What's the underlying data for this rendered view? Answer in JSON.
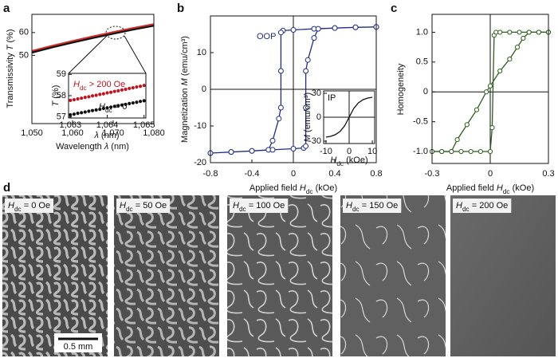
{
  "panel_labels": [
    "a",
    "b",
    "c",
    "d"
  ],
  "chart_data": [
    {
      "type": "line",
      "xlabel": [
        {
          "text": "Wavelength "
        },
        {
          "text": "λ",
          "italic": true
        },
        {
          "text": " (nm)"
        }
      ],
      "ylabel": [
        {
          "text": "Transmissivity "
        },
        {
          "text": "T",
          "italic": true
        },
        {
          "text": " (%)"
        }
      ],
      "xlim": [
        1050,
        1080
      ],
      "ylim": [
        20,
        68
      ],
      "xticks": [
        {
          "value": 1050,
          "label": "1,050"
        },
        {
          "value": 1060,
          "label": "1,060"
        },
        {
          "value": 1070,
          "label": "1,070"
        },
        {
          "value": 1080,
          "label": "1,080"
        }
      ],
      "yticks": [
        50,
        60
      ],
      "series": [
        {
          "color": "#d42a2a",
          "x": [
            1050,
            1055,
            1060,
            1065,
            1070,
            1075,
            1080
          ],
          "values": [
            51.9,
            54.2,
            56.3,
            58.3,
            60.2,
            62.0,
            63.7
          ]
        },
        {
          "color": "#111111",
          "x": [
            1050,
            1055,
            1060,
            1065,
            1070,
            1075,
            1080
          ],
          "values": [
            51.2,
            53.5,
            55.6,
            57.6,
            59.5,
            61.3,
            63.0
          ]
        }
      ]
    },
    {
      "type": "scatter",
      "xlabel": [
        {
          "text": "λ",
          "italic": true
        },
        {
          "text": " (nm)"
        }
      ],
      "ylabel": [
        {
          "text": "T",
          "italic": true
        },
        {
          "text": " (%)"
        }
      ],
      "xlim": [
        1062.95,
        1065.05
      ],
      "ylim": [
        56.95,
        59.05
      ],
      "xticks": [
        {
          "value": 1063,
          "label": "1,063"
        },
        {
          "value": 1064,
          "label": "1,064"
        },
        {
          "value": 1065,
          "label": "1,065"
        }
      ],
      "yticks": [
        57,
        58,
        59
      ],
      "annotations": [
        [
          {
            "text": "H",
            "italic": true
          },
          {
            "text": "dc",
            "sub": true
          },
          {
            "text": " > 200 Oe"
          }
        ],
        [
          {
            "text": "H",
            "italic": true
          },
          {
            "text": "dc",
            "sub": true
          },
          {
            "text": " = 0"
          }
        ]
      ],
      "series": [
        {
          "color": "#c0141e",
          "x": [
            1063,
            1063.1,
            1063.2,
            1063.3,
            1063.4,
            1063.5,
            1063.6,
            1063.7,
            1063.8,
            1063.9,
            1064,
            1064.1,
            1064.2,
            1064.3,
            1064.4,
            1064.5,
            1064.6,
            1064.7,
            1064.8,
            1064.9,
            1065
          ],
          "values": [
            57.78,
            57.81,
            57.85,
            57.88,
            57.92,
            57.95,
            57.99,
            58.02,
            58.06,
            58.09,
            58.13,
            58.16,
            58.2,
            58.23,
            58.27,
            58.3,
            58.34,
            58.37,
            58.41,
            58.44,
            58.48
          ]
        },
        {
          "color": "#111111",
          "x": [
            1063,
            1063.1,
            1063.2,
            1063.3,
            1063.4,
            1063.5,
            1063.6,
            1063.7,
            1063.8,
            1063.9,
            1064,
            1064.1,
            1064.2,
            1064.3,
            1064.4,
            1064.5,
            1064.6,
            1064.7,
            1064.8,
            1064.9,
            1065
          ],
          "values": [
            57.1,
            57.13,
            57.17,
            57.2,
            57.23,
            57.27,
            57.3,
            57.33,
            57.36,
            57.4,
            57.43,
            57.46,
            57.5,
            57.53,
            57.56,
            57.59,
            57.63,
            57.66,
            57.69,
            57.73,
            57.76
          ]
        }
      ]
    },
    {
      "type": "line",
      "marker": "open-circle",
      "zero_lines": true,
      "xlabel": [
        {
          "text": "Applied field "
        },
        {
          "text": "H",
          "italic": true
        },
        {
          "text": "dc",
          "sub": true
        },
        {
          "text": " (kOe)"
        }
      ],
      "ylabel": [
        {
          "text": "Magnetization "
        },
        {
          "text": "M",
          "italic": true
        },
        {
          "text": " (emu/cm³)"
        }
      ],
      "xlim": [
        -0.8,
        0.8
      ],
      "ylim": [
        -20,
        20
      ],
      "xticks": [
        -0.8,
        -0.4,
        0,
        0.4,
        0.8
      ],
      "yticks": [
        -20,
        -10,
        0,
        10
      ],
      "annotations": [
        [
          {
            "text": "OOP"
          }
        ]
      ],
      "series": [
        {
          "color": "#1f2d86",
          "x": [
            0.8,
            0.6,
            0.4,
            0.2,
            0.0,
            -0.1,
            -0.12,
            -0.12,
            -0.12,
            -0.14,
            -0.2,
            -0.24,
            -0.4,
            -0.6,
            -0.8,
            -0.8,
            -0.6,
            -0.4,
            -0.2,
            0.0,
            0.1,
            0.12,
            0.12,
            0.12,
            0.14,
            0.2,
            0.24,
            0.4,
            0.6,
            0.8
          ],
          "values": [
            17,
            16.9,
            16.7,
            16.5,
            16.2,
            16.0,
            15.5,
            5,
            -5,
            -8,
            -14,
            -16.5,
            -16.8,
            -17.1,
            -17.4,
            -17.4,
            -17.1,
            -16.8,
            -16.5,
            -16.2,
            -16.0,
            -15.5,
            -5,
            5,
            8,
            14,
            16.5,
            16.7,
            16.9,
            17
          ]
        }
      ]
    },
    {
      "type": "line",
      "zero_lines": true,
      "xlabel": [
        {
          "text": "H",
          "italic": true
        },
        {
          "text": "dc",
          "sub": true
        },
        {
          "text": " (kOe)"
        }
      ],
      "ylabel": [
        {
          "text": "M",
          "italic": true
        },
        {
          "text": " (emu/cm³)"
        }
      ],
      "xlim": [
        -11,
        11
      ],
      "ylim": [
        -33,
        33
      ],
      "xticks": [
        -10,
        0,
        10
      ],
      "yticks": [
        -30,
        0,
        30
      ],
      "annotations": [
        [
          {
            "text": "IP"
          }
        ]
      ],
      "series": [
        {
          "color": "#111111",
          "x": [
            -10,
            -8,
            -6,
            -4,
            -2,
            0,
            2,
            4,
            6,
            8,
            10
          ],
          "values": [
            -25,
            -24,
            -22,
            -18,
            -11,
            0,
            11,
            18,
            22,
            24,
            25
          ]
        }
      ]
    },
    {
      "type": "line",
      "marker": "open-circle",
      "zero_lines": true,
      "xlabel": [
        {
          "text": "Applied field "
        },
        {
          "text": "H",
          "italic": true
        },
        {
          "text": "dc",
          "sub": true
        },
        {
          "text": " (kOe)"
        }
      ],
      "ylabel": [
        {
          "text": "Homogeneity"
        }
      ],
      "xlim": [
        -0.3,
        0.3
      ],
      "ylim": [
        -1.2,
        1.3
      ],
      "xticks": [
        -0.3,
        0,
        0.3
      ],
      "yticks": [
        {
          "value": -1,
          "label": "-1.0"
        },
        -0.5,
        0,
        0.5,
        {
          "value": 1,
          "label": "1.0"
        }
      ],
      "series": [
        {
          "color": "#2e5e1e",
          "x": [
            -0.3,
            -0.25,
            -0.2,
            -0.15,
            -0.1,
            -0.05,
            0,
            0.01,
            0.02,
            0.03,
            0.05,
            0.1,
            0.15,
            0.2,
            0.25,
            0.3
          ],
          "values": [
            -1,
            -1,
            -1,
            -1,
            -1,
            -1,
            -1,
            -0.6,
            0.95,
            1,
            1,
            1,
            1,
            1,
            1,
            1
          ]
        },
        {
          "color": "#2e5e1e",
          "x": [
            -0.3,
            -0.25,
            -0.2,
            -0.17,
            -0.12,
            -0.07,
            -0.02,
            0,
            0.05,
            0.1,
            0.14,
            0.17,
            0.2,
            0.25,
            0.3
          ],
          "values": [
            -1,
            -1,
            -1,
            -0.8,
            -0.55,
            -0.3,
            0,
            0.1,
            0.35,
            0.55,
            0.75,
            0.9,
            1,
            1,
            1
          ]
        }
      ]
    }
  ],
  "images": [
    [
      {
        "text": "H",
        "italic": true
      },
      {
        "text": "dc",
        "sub": true
      },
      {
        "text": " = 0 Oe"
      }
    ],
    [
      {
        "text": "H",
        "italic": true
      },
      {
        "text": "dc",
        "sub": true
      },
      {
        "text": " = 50 Oe"
      }
    ],
    [
      {
        "text": "H",
        "italic": true
      },
      {
        "text": "dc",
        "sub": true
      },
      {
        "text": " = 100 Oe"
      }
    ],
    [
      {
        "text": "H",
        "italic": true
      },
      {
        "text": "dc",
        "sub": true
      },
      {
        "text": " = 150 Oe"
      }
    ],
    [
      {
        "text": "H",
        "italic": true
      },
      {
        "text": "dc",
        "sub": true
      },
      {
        "text": " = 200 Oe"
      }
    ]
  ],
  "scale_bar": "0.5 mm"
}
